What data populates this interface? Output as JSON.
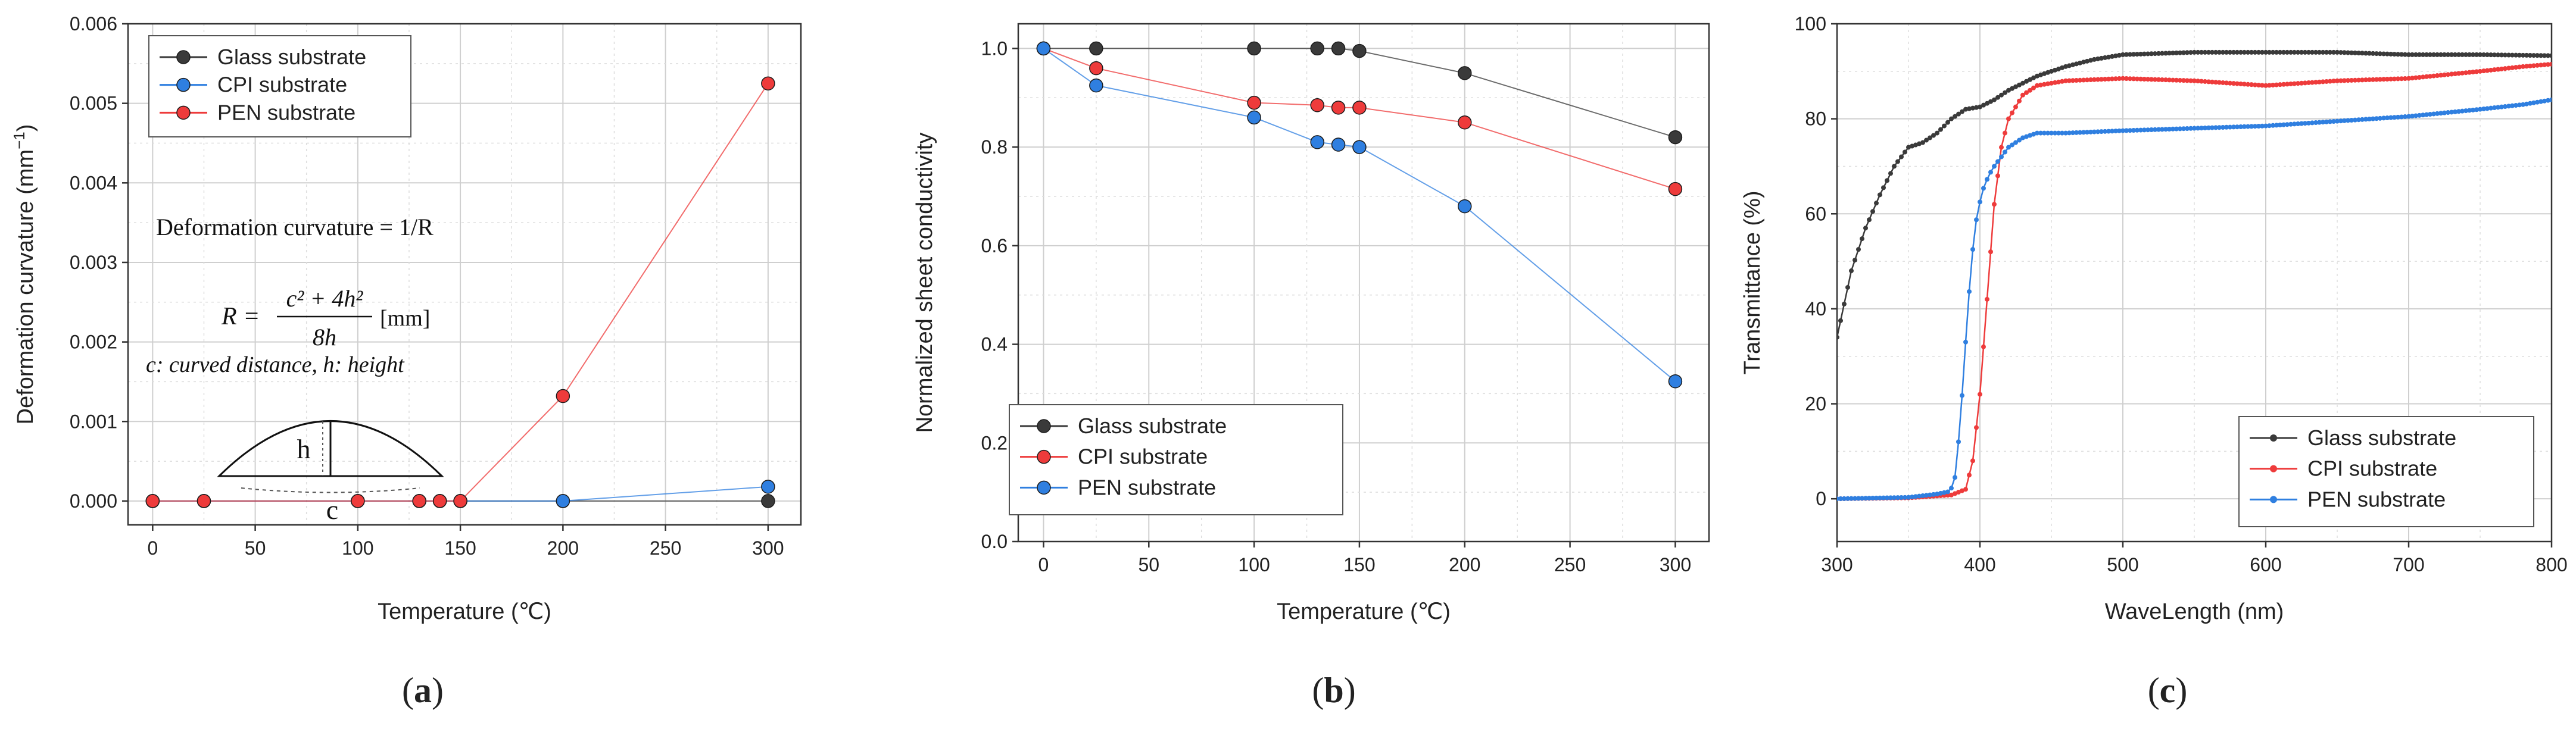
{
  "chart_data": [
    {
      "id": "a",
      "type": "line",
      "panel_label": "(a)",
      "xlabel": "Temperature (℃)",
      "ylabel": "Deformation curvature (mm",
      "ylabel_sup": "−1",
      "ylabel_close": ")",
      "xlim": [
        -12,
        316
      ],
      "ylim": [
        -0.0003,
        0.006
      ],
      "xticks": [
        0,
        50,
        100,
        150,
        200,
        250,
        300
      ],
      "xtick_labels": [
        "0",
        "50",
        "100",
        "150",
        "200",
        "250",
        "300"
      ],
      "yticks": [
        0,
        0.001,
        0.002,
        0.003,
        0.004,
        0.005,
        0.006
      ],
      "ytick_labels": [
        "0.000",
        "0.001",
        "0.002",
        "0.003",
        "0.004",
        "0.005",
        "0.006"
      ],
      "grid": true,
      "legend_position": "top-left",
      "series": [
        {
          "name": "Glass substrate",
          "color": "#3a3a3a",
          "x": [
            0,
            25,
            100,
            130,
            140,
            150,
            200,
            300
          ],
          "y": [
            0,
            0,
            0,
            0,
            0,
            0,
            0,
            0
          ]
        },
        {
          "name": "CPI substrate",
          "color": "#2f7fe0",
          "x": [
            0,
            25,
            100,
            130,
            140,
            150,
            200,
            300
          ],
          "y": [
            0,
            0,
            0,
            0,
            0,
            0,
            0,
            0.00018
          ]
        },
        {
          "name": "PEN substrate",
          "color": "#ee3b3b",
          "x": [
            0,
            25,
            100,
            130,
            140,
            150,
            200,
            300
          ],
          "y": [
            0,
            0,
            0,
            0,
            0,
            0,
            0.00132,
            0.00525
          ]
        }
      ],
      "annotations": {
        "definition": "Deformation curvature = 1/R",
        "formula_r": "R =",
        "formula_num": "c² + 4h²",
        "formula_den": "8h",
        "formula_unit": "[mm]",
        "variables": "c: curved distance, h: height",
        "diagram_h": "h",
        "diagram_c": "c"
      }
    },
    {
      "id": "b",
      "type": "line",
      "panel_label": "(b)",
      "xlabel": "Temperature (℃)",
      "ylabel": "Normalized sheet conductivity",
      "xlim": [
        -12,
        316
      ],
      "ylim": [
        0,
        1.05
      ],
      "xticks": [
        0,
        50,
        100,
        150,
        200,
        250,
        300
      ],
      "xtick_labels": [
        "0",
        "50",
        "100",
        "150",
        "200",
        "250",
        "300"
      ],
      "yticks": [
        0,
        0.2,
        0.4,
        0.6,
        0.8,
        1.0
      ],
      "ytick_labels": [
        "0.0",
        "0.2",
        "0.4",
        "0.6",
        "0.8",
        "1.0"
      ],
      "grid": true,
      "legend_position": "bottom-left",
      "series": [
        {
          "name": "Glass substrate",
          "color": "#3a3a3a",
          "x": [
            0,
            25,
            100,
            130,
            140,
            150,
            200,
            300
          ],
          "y": [
            1.0,
            1.0,
            1.0,
            1.0,
            1.0,
            0.995,
            0.95,
            0.82
          ]
        },
        {
          "name": "CPI substrate",
          "color": "#ee3b3b",
          "x": [
            0,
            25,
            100,
            130,
            140,
            150,
            200,
            300
          ],
          "y": [
            1.0,
            0.96,
            0.89,
            0.885,
            0.88,
            0.88,
            0.85,
            0.715
          ]
        },
        {
          "name": "PEN substrate",
          "color": "#2f7fe0",
          "x": [
            0,
            25,
            100,
            130,
            140,
            150,
            200,
            300
          ],
          "y": [
            1.0,
            0.925,
            0.86,
            0.81,
            0.805,
            0.8,
            0.68,
            0.325
          ]
        }
      ]
    },
    {
      "id": "c",
      "type": "line",
      "panel_label": "(c)",
      "xlabel": "WaveLength (nm)",
      "ylabel": "Transmittance (%)",
      "xlim": [
        300,
        800
      ],
      "ylim": [
        -9,
        100
      ],
      "xticks": [
        300,
        400,
        500,
        600,
        700,
        800
      ],
      "xtick_labels": [
        "300",
        "400",
        "500",
        "600",
        "700",
        "800"
      ],
      "yticks": [
        0,
        20,
        40,
        60,
        80,
        100
      ],
      "ytick_labels": [
        "0",
        "20",
        "40",
        "60",
        "80",
        "100"
      ],
      "grid": true,
      "legend_position": "bottom-right",
      "series": [
        {
          "name": "Glass substrate",
          "color": "#3a3a3a",
          "x": [
            300,
            305,
            310,
            320,
            330,
            340,
            350,
            360,
            370,
            380,
            390,
            400,
            410,
            420,
            440,
            460,
            480,
            500,
            550,
            600,
            650,
            700,
            750,
            800
          ],
          "y": [
            34,
            41,
            48,
            57,
            64,
            70,
            74,
            75,
            77,
            80,
            82,
            82.5,
            84,
            86,
            89,
            91,
            92.5,
            93.5,
            94,
            94,
            94,
            93.5,
            93.5,
            93.3
          ]
        },
        {
          "name": "CPI substrate",
          "color": "#ee3b3b",
          "x": [
            300,
            350,
            380,
            390,
            395,
            400,
            405,
            410,
            415,
            420,
            430,
            440,
            460,
            500,
            550,
            600,
            650,
            700,
            750,
            780,
            800
          ],
          "y": [
            0,
            0.2,
            0.8,
            2,
            8,
            22,
            42,
            62,
            74,
            80,
            85,
            87,
            88,
            88.5,
            88,
            87,
            88,
            88.5,
            90,
            91,
            91.5
          ]
        },
        {
          "name": "PEN substrate",
          "color": "#2f7fe0",
          "x": [
            300,
            350,
            370,
            378,
            382,
            386,
            390,
            394,
            398,
            402,
            406,
            410,
            420,
            430,
            440,
            460,
            500,
            550,
            600,
            650,
            700,
            750,
            780,
            800
          ],
          "y": [
            0,
            0.3,
            1,
            1.5,
            3,
            15,
            33,
            50,
            60,
            65,
            68,
            70,
            74,
            76,
            77,
            77,
            77.5,
            78,
            78.5,
            79.5,
            80.5,
            82,
            83,
            84
          ]
        }
      ]
    }
  ]
}
